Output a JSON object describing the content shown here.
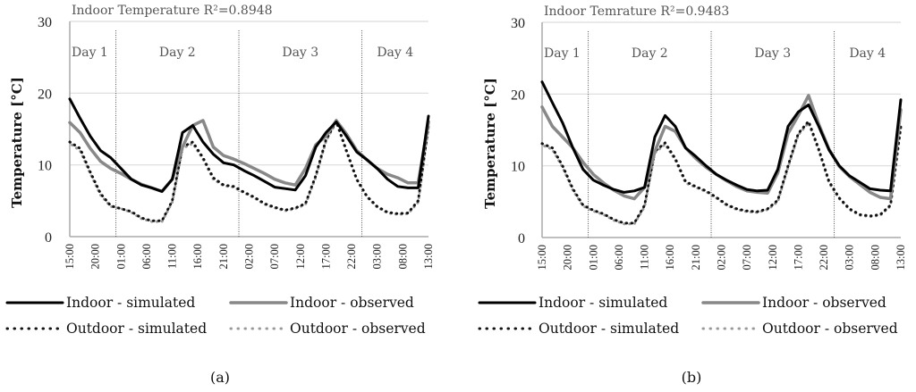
{
  "chart_data": [
    {
      "type": "line",
      "panel": "a",
      "caption": "(a)",
      "title": "Indoor Temperature R²=0.8948",
      "ylabel": "Temperature [°C]",
      "xlabel": "",
      "ylim": [
        0,
        30
      ],
      "yticks": [
        "0",
        "10",
        "20",
        "30"
      ],
      "ytick_values": [
        0,
        10,
        20,
        30
      ],
      "x_hours_range": [
        0,
        70
      ],
      "xtick_labels": [
        "15:00",
        "20:00",
        "01:00",
        "06:00",
        "11:00",
        "16:00",
        "21:00",
        "02:00",
        "07:00",
        "12:00",
        "17:00",
        "22:00",
        "03:00",
        "08:00",
        "13:00"
      ],
      "day_labels": [
        "Day 1",
        "Day 2",
        "Day 3",
        "Day 4"
      ],
      "day_boundaries_hours": [
        9,
        33,
        57
      ],
      "grid": true,
      "legend_position": "bottom",
      "x_hours": [
        0,
        2,
        4,
        6,
        8,
        10,
        12,
        14,
        16,
        18,
        20,
        22,
        24,
        26,
        28,
        30,
        32,
        34,
        36,
        38,
        40,
        42,
        44,
        46,
        48,
        50,
        52,
        54,
        56,
        58,
        60,
        62,
        64,
        66,
        68,
        70
      ],
      "series": [
        {
          "name": "Indoor - simulated",
          "style": "solid-black",
          "values": [
            19.2,
            16.5,
            14.0,
            12.0,
            11.0,
            9.5,
            8.0,
            7.2,
            6.8,
            6.3,
            8.0,
            14.5,
            15.5,
            13.2,
            11.5,
            10.3,
            10.0,
            9.2,
            8.5,
            7.7,
            6.9,
            6.7,
            6.5,
            8.5,
            12.5,
            14.5,
            16.0,
            14.0,
            11.8,
            10.7,
            9.5,
            8.0,
            7.0,
            6.8,
            6.8,
            16.8
          ]
        },
        {
          "name": "Indoor - observed",
          "style": "solid-gray",
          "values": [
            15.9,
            14.5,
            12.3,
            10.5,
            9.5,
            8.8,
            8.0,
            7.3,
            6.8,
            6.3,
            8.0,
            12.5,
            15.5,
            16.2,
            12.5,
            11.3,
            10.8,
            10.2,
            9.5,
            8.8,
            8.0,
            7.5,
            7.2,
            9.5,
            12.8,
            14.0,
            16.2,
            14.3,
            12.0,
            10.7,
            9.5,
            8.7,
            8.2,
            7.5,
            7.5,
            16.0
          ]
        },
        {
          "name": "Outdoor - simulated",
          "style": "dotted-black",
          "values": [
            13.2,
            12.3,
            9.0,
            6.0,
            4.3,
            3.9,
            3.5,
            2.6,
            2.2,
            2.2,
            5.0,
            12.5,
            13.2,
            11.0,
            8.2,
            7.2,
            7.0,
            6.2,
            5.5,
            4.6,
            4.1,
            3.7,
            4.0,
            4.6,
            8.5,
            13.5,
            16.1,
            12.0,
            8.0,
            5.6,
            4.2,
            3.4,
            3.2,
            3.3,
            5.0,
            15.5
          ]
        },
        {
          "name": "Outdoor - observed",
          "style": "dotted-gray",
          "values": [
            13.0,
            12.0,
            8.8,
            5.8,
            4.2,
            3.9,
            3.4,
            2.5,
            2.1,
            2.1,
            4.8,
            12.3,
            13.0,
            10.8,
            8.0,
            7.1,
            6.9,
            6.1,
            5.4,
            4.5,
            4.0,
            3.6,
            3.9,
            4.5,
            8.3,
            13.3,
            16.0,
            11.8,
            7.9,
            5.5,
            4.1,
            3.3,
            3.1,
            3.2,
            4.8,
            15.3
          ]
        }
      ]
    },
    {
      "type": "line",
      "panel": "b",
      "caption": "(b)",
      "title": "Indoor Temrature R²=0.9483",
      "ylabel": "Temperature [°C]",
      "xlabel": "",
      "ylim": [
        0,
        30
      ],
      "yticks": [
        "0",
        "10",
        "20",
        "30"
      ],
      "ytick_values": [
        0,
        10,
        20,
        30
      ],
      "x_hours_range": [
        0,
        70
      ],
      "xtick_labels": [
        "15:00",
        "20:00",
        "01:00",
        "06:00",
        "11:00",
        "16:00",
        "21:00",
        "02:00",
        "07:00",
        "12:00",
        "17:00",
        "22:00",
        "03:00",
        "08:00",
        "13:00"
      ],
      "day_labels": [
        "Day 1",
        "Day 2",
        "Day 3",
        "Day 4"
      ],
      "day_boundaries_hours": [
        9,
        33,
        57
      ],
      "grid": true,
      "legend_position": "bottom",
      "x_hours": [
        0,
        2,
        4,
        6,
        8,
        10,
        12,
        14,
        16,
        18,
        20,
        22,
        24,
        26,
        28,
        30,
        32,
        34,
        36,
        38,
        40,
        42,
        44,
        46,
        48,
        50,
        52,
        54,
        56,
        58,
        60,
        62,
        64,
        66,
        68,
        70
      ],
      "series": [
        {
          "name": "Indoor - simulated",
          "style": "solid-black",
          "values": [
            21.7,
            18.8,
            16.0,
            12.5,
            9.5,
            8.0,
            7.3,
            6.7,
            6.3,
            6.5,
            7.0,
            14.0,
            17.0,
            15.5,
            12.5,
            11.3,
            10.0,
            8.8,
            8.0,
            7.3,
            6.7,
            6.5,
            6.6,
            9.5,
            15.5,
            17.5,
            18.5,
            15.5,
            12.2,
            10.0,
            8.6,
            7.7,
            6.8,
            6.6,
            6.5,
            19.2
          ]
        },
        {
          "name": "Indoor - observed",
          "style": "solid-gray",
          "values": [
            18.2,
            15.5,
            14.0,
            12.5,
            10.5,
            8.8,
            7.6,
            6.6,
            5.8,
            5.4,
            7.0,
            12.0,
            15.5,
            14.8,
            12.5,
            11.0,
            9.8,
            8.8,
            7.9,
            7.1,
            6.5,
            6.3,
            6.2,
            9.0,
            14.5,
            17.0,
            19.8,
            15.8,
            12.3,
            9.9,
            8.5,
            7.4,
            6.3,
            5.6,
            5.4,
            17.8
          ]
        },
        {
          "name": "Outdoor - simulated",
          "style": "dotted-black",
          "values": [
            13.1,
            12.5,
            10.0,
            6.8,
            4.5,
            3.8,
            3.3,
            2.5,
            2.0,
            2.0,
            4.5,
            12.0,
            13.2,
            11.0,
            7.8,
            7.1,
            6.5,
            5.6,
            4.6,
            4.0,
            3.7,
            3.6,
            4.0,
            5.2,
            10.0,
            14.5,
            16.2,
            12.3,
            7.8,
            5.5,
            4.0,
            3.2,
            3.0,
            3.2,
            4.5,
            15.5
          ]
        },
        {
          "name": "Outdoor - observed",
          "style": "dotted-gray",
          "values": [
            12.9,
            12.3,
            9.8,
            6.6,
            4.4,
            3.7,
            3.2,
            2.4,
            1.9,
            1.9,
            4.3,
            11.8,
            13.0,
            10.8,
            7.6,
            7.0,
            6.4,
            5.5,
            4.5,
            3.9,
            3.6,
            3.5,
            3.9,
            5.0,
            9.8,
            14.3,
            16.0,
            12.1,
            7.6,
            5.4,
            3.9,
            3.1,
            2.9,
            3.1,
            4.4,
            15.3
          ]
        }
      ]
    }
  ]
}
